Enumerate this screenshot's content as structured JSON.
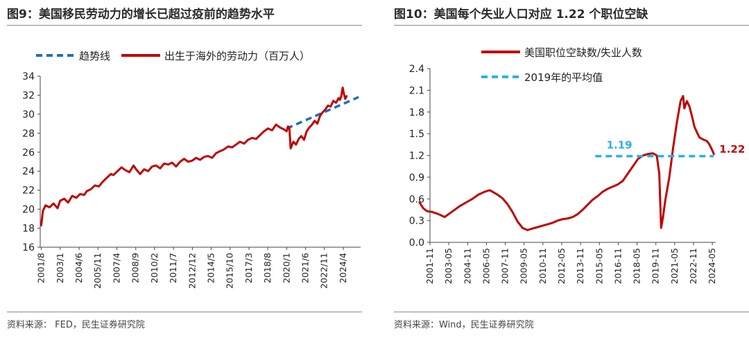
{
  "left": {
    "title": "图9：美国移民劳动力的增长已超过疫前的趋势水平",
    "source": "资料来源：  FED，民生证券研究院",
    "chart_data": {
      "type": "line",
      "title": "图9：美国移民劳动力的增长已超过疫前的趋势水平",
      "ylim": [
        16,
        34
      ],
      "yticks": [
        16,
        18,
        20,
        22,
        24,
        26,
        28,
        30,
        32,
        34
      ],
      "xlim": [
        2001.5,
        2025.55
      ],
      "xtick_labels": [
        "2001/8",
        "2003/1",
        "2004/6",
        "2005/11",
        "2007/4",
        "2008/9",
        "2010/2",
        "2011/7",
        "2012/12",
        "2014/5",
        "2015/10",
        "2017/3",
        "2018/8",
        "2020/1",
        "2021/6",
        "2022/11",
        "2024/4"
      ],
      "xtick_positions": [
        2001.58,
        2003.0,
        2004.42,
        2005.83,
        2007.25,
        2008.67,
        2010.08,
        2011.5,
        2012.92,
        2014.33,
        2015.75,
        2017.17,
        2018.58,
        2020.0,
        2021.42,
        2022.83,
        2024.25
      ],
      "legend_position": "top",
      "grid": false,
      "series": [
        {
          "name": "趋势线",
          "color": "#1f6fbf",
          "style": "dashed",
          "x": [
            2020.0,
            2025.4
          ],
          "y": [
            28.5,
            31.8
          ]
        },
        {
          "name": "出生于海外的劳动力（百万人）",
          "color": "#c00000",
          "style": "solid",
          "x": [
            2001.58,
            2001.7,
            2001.9,
            2002.2,
            2002.5,
            2002.8,
            2003.0,
            2003.3,
            2003.6,
            2003.9,
            2004.2,
            2004.5,
            2004.8,
            2005.0,
            2005.3,
            2005.6,
            2005.9,
            2006.2,
            2006.5,
            2006.8,
            2007.0,
            2007.3,
            2007.6,
            2007.9,
            2008.2,
            2008.5,
            2008.7,
            2009.0,
            2009.3,
            2009.6,
            2009.9,
            2010.2,
            2010.5,
            2010.8,
            2011.1,
            2011.4,
            2011.7,
            2012.0,
            2012.3,
            2012.6,
            2012.9,
            2013.2,
            2013.5,
            2013.8,
            2014.1,
            2014.4,
            2014.7,
            2015.0,
            2015.3,
            2015.6,
            2015.9,
            2016.2,
            2016.5,
            2016.8,
            2017.1,
            2017.4,
            2017.7,
            2018.0,
            2018.3,
            2018.6,
            2018.9,
            2019.2,
            2019.5,
            2019.8,
            2020.0,
            2020.1,
            2020.2,
            2020.3,
            2020.5,
            2020.7,
            2020.9,
            2021.1,
            2021.3,
            2021.5,
            2021.7,
            2021.9,
            2022.1,
            2022.3,
            2022.5,
            2022.7,
            2022.9,
            2023.1,
            2023.3,
            2023.5,
            2023.7,
            2023.9,
            2024.0,
            2024.1,
            2024.2,
            2024.3,
            2024.4,
            2024.5
          ],
          "y": [
            18.3,
            19.8,
            20.4,
            20.2,
            20.6,
            20.1,
            20.9,
            21.1,
            20.7,
            21.4,
            21.2,
            21.6,
            21.5,
            21.9,
            22.1,
            22.5,
            22.4,
            22.9,
            23.3,
            23.7,
            23.6,
            24.0,
            24.4,
            24.1,
            23.9,
            24.6,
            24.2,
            23.7,
            24.2,
            24.0,
            24.5,
            24.6,
            24.3,
            24.8,
            24.7,
            24.9,
            24.5,
            25.0,
            25.3,
            25.0,
            25.1,
            25.4,
            25.2,
            25.5,
            25.6,
            25.4,
            25.9,
            26.1,
            26.3,
            26.6,
            26.5,
            26.8,
            27.1,
            26.9,
            27.3,
            27.5,
            27.4,
            27.8,
            28.2,
            28.5,
            28.3,
            28.9,
            28.6,
            28.4,
            28.2,
            28.7,
            28.6,
            26.4,
            27.1,
            26.8,
            27.4,
            27.7,
            27.3,
            28.2,
            28.6,
            28.9,
            29.3,
            29.0,
            29.8,
            30.2,
            30.5,
            30.9,
            30.8,
            31.4,
            31.2,
            31.7,
            31.5,
            31.9,
            32.8,
            32.1,
            31.6,
            31.9
          ]
        }
      ]
    }
  },
  "right": {
    "title": "图10：美国每个失业人口对应 1.22 个职位空缺",
    "source": "资料来源：Wind，民生证券研究院",
    "annotation_left": "1.19",
    "annotation_right": "1.22",
    "chart_data": {
      "type": "line",
      "title": "图10：美国每个失业人口对应 1.22 个职位空缺",
      "ylim": [
        0.0,
        2.4
      ],
      "yticks": [
        0.0,
        0.3,
        0.6,
        0.9,
        1.2,
        1.5,
        1.8,
        2.1,
        2.4
      ],
      "ytick_labels": [
        "0.0",
        "0.3",
        "0.6",
        "0.9",
        "1.2",
        "1.5",
        "1.8",
        "2.1",
        "2.4"
      ],
      "xlim": [
        2001.83,
        2024.6
      ],
      "xtick_labels": [
        "2001-11",
        "2003-05",
        "2004-11",
        "2006-05",
        "2007-11",
        "2009-05",
        "2010-11",
        "2012-05",
        "2013-11",
        "2015-05",
        "2016-11",
        "2018-05",
        "2019-11",
        "2021-05",
        "2022-11",
        "2024-05"
      ],
      "xtick_positions": [
        2001.83,
        2003.33,
        2004.83,
        2006.33,
        2007.83,
        2009.33,
        2010.83,
        2012.33,
        2013.83,
        2015.33,
        2016.83,
        2018.33,
        2019.83,
        2021.33,
        2022.83,
        2024.33
      ],
      "legend_position": "top",
      "grid": false,
      "series": [
        {
          "name": "美国职位空缺数/失业人数",
          "color": "#c00000",
          "style": "solid",
          "x": [
            2001.0,
            2001.3,
            2001.6,
            2002.0,
            2002.5,
            2003.0,
            2003.4,
            2003.8,
            2004.2,
            2004.7,
            2005.2,
            2005.7,
            2006.2,
            2006.6,
            2006.9,
            2007.2,
            2007.6,
            2008.0,
            2008.4,
            2008.8,
            2009.2,
            2009.6,
            2010.0,
            2010.4,
            2010.8,
            2011.2,
            2011.6,
            2012.0,
            2012.4,
            2012.8,
            2013.2,
            2013.6,
            2014.0,
            2014.4,
            2014.8,
            2015.2,
            2015.6,
            2016.0,
            2016.4,
            2016.8,
            2017.2,
            2017.6,
            2018.0,
            2018.4,
            2018.8,
            2019.2,
            2019.6,
            2019.9,
            2020.1,
            2020.25,
            2020.4,
            2020.6,
            2020.9,
            2021.2,
            2021.5,
            2021.8,
            2022.0,
            2022.1,
            2022.3,
            2022.5,
            2022.7,
            2022.9,
            2023.1,
            2023.3,
            2023.6,
            2023.9,
            2024.1,
            2024.3,
            2024.45
          ],
          "y": [
            0.55,
            0.47,
            0.43,
            0.42,
            0.39,
            0.35,
            0.4,
            0.45,
            0.5,
            0.55,
            0.6,
            0.66,
            0.7,
            0.72,
            0.69,
            0.66,
            0.61,
            0.53,
            0.42,
            0.29,
            0.2,
            0.17,
            0.19,
            0.21,
            0.23,
            0.25,
            0.27,
            0.3,
            0.32,
            0.33,
            0.35,
            0.39,
            0.45,
            0.52,
            0.59,
            0.64,
            0.7,
            0.74,
            0.77,
            0.8,
            0.85,
            0.95,
            1.05,
            1.15,
            1.2,
            1.22,
            1.23,
            1.2,
            0.95,
            0.2,
            0.35,
            0.6,
            0.9,
            1.3,
            1.65,
            1.95,
            2.02,
            1.85,
            1.95,
            1.88,
            1.75,
            1.6,
            1.52,
            1.45,
            1.42,
            1.4,
            1.35,
            1.28,
            1.22
          ]
        },
        {
          "name": "2019年的平均值",
          "color": "#2ab0e8",
          "style": "dashed",
          "x": [
            2015.0,
            2024.45
          ],
          "y": [
            1.19,
            1.19
          ]
        }
      ]
    }
  }
}
